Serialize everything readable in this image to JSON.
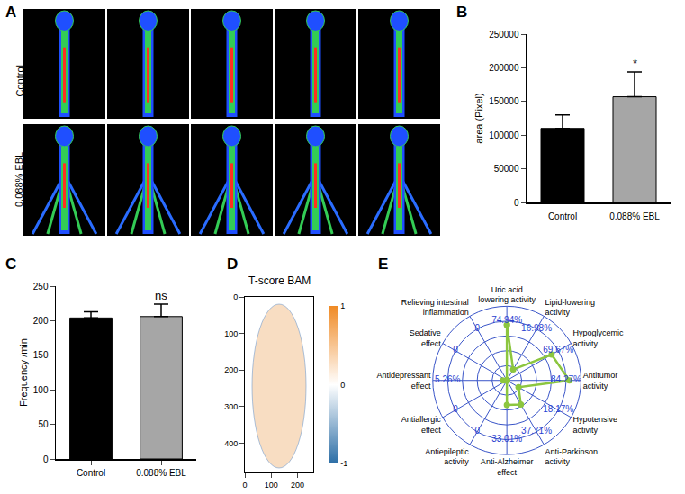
{
  "chart_data": [
    {
      "label": "A",
      "type": "image",
      "row_labels": [
        "Control",
        "0.088% EBL"
      ]
    },
    {
      "label": "B",
      "type": "bar",
      "categories": [
        "Control",
        "0.088% EBL"
      ],
      "values": [
        110000,
        157000
      ],
      "errors": [
        20000,
        37000
      ],
      "colors": [
        "#000000",
        "#a6a6a6"
      ],
      "y_label": "area (Pixel)",
      "ylim": [
        0,
        250000
      ],
      "yticks": [
        0,
        50000,
        100000,
        150000,
        200000,
        250000
      ],
      "annotations": [
        {
          "category": "0.088% EBL",
          "text": "*"
        }
      ]
    },
    {
      "label": "C",
      "type": "bar",
      "categories": [
        "Control",
        "0.088% EBL"
      ],
      "values": [
        204,
        206
      ],
      "errors": [
        9,
        18
      ],
      "colors": [
        "#000000",
        "#a6a6a6"
      ],
      "y_label": "Frequency /min",
      "ylim": [
        0,
        250
      ],
      "yticks": [
        0,
        50,
        100,
        150,
        200,
        250
      ],
      "annotations": [
        {
          "category": "0.088% EBL",
          "text": "ns"
        }
      ]
    },
    {
      "label": "D",
      "type": "image",
      "title": "T-score BAM",
      "xlim": [
        0,
        260
      ],
      "ylim": [
        480,
        0
      ],
      "xticks": [
        0,
        100,
        200
      ],
      "yticks": [
        0,
        100,
        200,
        300,
        400
      ],
      "colorbar": {
        "range": [
          -1,
          1
        ],
        "ticks": [
          -1,
          0,
          1
        ]
      }
    },
    {
      "label": "E",
      "type": "radar",
      "categories": [
        "Uric acid lowering activity",
        "Lipid-lowering activity",
        "Hypoglycemic activity",
        "Antitumor activity",
        "Hypotensive activity",
        "Anti-Parkinson activity",
        "Anti-Alzheimer effect",
        "Antiepileptic activity",
        "Antiallergic effect",
        "Antidepressant effect",
        "Sedative effect",
        "Relieving intestinal inflammation"
      ],
      "values": [
        74.94,
        16.98,
        69.67,
        84.27,
        18.17,
        37.71,
        33.01,
        0,
        0,
        5.26,
        0,
        0
      ],
      "value_labels": [
        "74.94%",
        "16.98%",
        "69.67%",
        "84.27%",
        "18.17%",
        "37.71%",
        "33.01%",
        "0",
        "0",
        "5.26%",
        "0",
        "0"
      ],
      "ylim": [
        0,
        100
      ],
      "yticks": [
        20,
        40,
        60,
        80,
        100
      ],
      "tick_labels": false,
      "color": "#8cc63f",
      "marker": "circle",
      "data_labels": true
    }
  ]
}
